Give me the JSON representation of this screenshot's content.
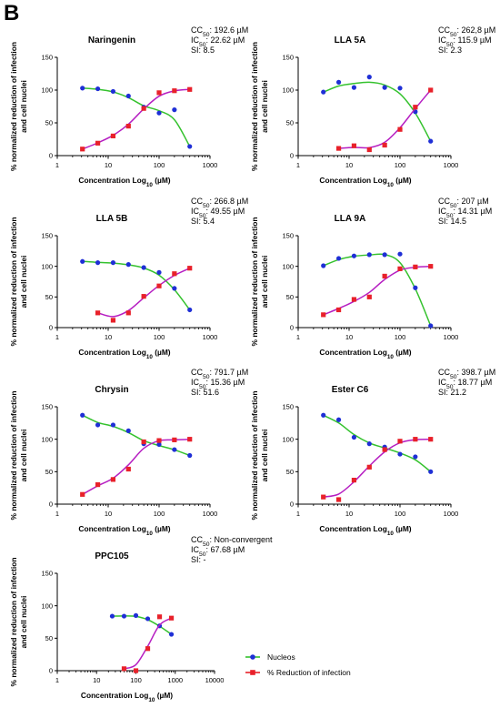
{
  "panel_label": "B",
  "units": {
    "cc50": "CC",
    "ic50": "IC",
    "sub": "50"
  },
  "legend": {
    "nucleos": "Nucleos",
    "reduction": "% Reduction of infection"
  },
  "colors": {
    "nucleos_points": "#1f2fd6",
    "reduction_points": "#e8212a",
    "nucleos_curve": "#35c22e",
    "reduction_curve": "#b61ec2"
  },
  "chart_data": [
    {
      "type": "scatter",
      "title": "Naringenin",
      "ylabel": [
        "% normalized reduction of infection",
        "and cell nuclei"
      ],
      "xlabel": "Concentration Log",
      "xlabel_sub": "10",
      "xlabel_unit": "(µM)",
      "xscale": "log",
      "xlim": [
        1,
        1000
      ],
      "ylim": [
        0,
        150
      ],
      "xticks": [
        1,
        10,
        100,
        1000
      ],
      "yticks": [
        0,
        50,
        100,
        150
      ],
      "stats": [
        "CC50: 192.6 µM",
        "IC50: 22.62 µM",
        "SI: 8.5"
      ],
      "series": [
        {
          "name": "Nucleos",
          "x": [
            3.125,
            6.25,
            12.5,
            25,
            50,
            100,
            200,
            400
          ],
          "y": [
            103,
            102,
            98,
            91,
            74,
            65,
            70,
            14
          ]
        },
        {
          "name": "% Reduction of infection",
          "x": [
            3.125,
            6.25,
            12.5,
            25,
            50,
            100,
            200,
            400
          ],
          "y": [
            10,
            19,
            30,
            45,
            72,
            96,
            99,
            101
          ]
        }
      ]
    },
    {
      "type": "scatter",
      "title": "LLA 5A",
      "ylabel": [
        "% normalized reduction of infection",
        "and cell nuclei"
      ],
      "xlabel": "Concentration Log",
      "xlabel_sub": "10",
      "xlabel_unit": "(µM)",
      "xscale": "log",
      "xlim": [
        1,
        1000
      ],
      "ylim": [
        0,
        150
      ],
      "xticks": [
        1,
        10,
        100,
        1000
      ],
      "yticks": [
        0,
        50,
        100,
        150
      ],
      "stats": [
        "CC50: 262,8 µM",
        "IC50: 115.9 µM",
        "SI: 2.3"
      ],
      "series": [
        {
          "name": "Nucleos",
          "x": [
            3.125,
            6.25,
            12.5,
            25,
            50,
            100,
            200,
            400
          ],
          "y": [
            97,
            112,
            104,
            120,
            104,
            103,
            67,
            22
          ]
        },
        {
          "name": "% Reduction of infection",
          "x": [
            3.125,
            6.25,
            12.5,
            25,
            50,
            100,
            200,
            400
          ],
          "y": [
            null,
            11,
            15,
            9,
            16,
            40,
            74,
            100
          ]
        }
      ]
    },
    {
      "type": "scatter",
      "title": "LLA 5B",
      "ylabel": [
        "% normalized reduction of infection",
        "and cell nuclei"
      ],
      "xlabel": "Concentration Log",
      "xlabel_sub": "10",
      "xlabel_unit": "(µM)",
      "xscale": "log",
      "xlim": [
        1,
        1000
      ],
      "ylim": [
        0,
        150
      ],
      "xticks": [
        1,
        10,
        100,
        1000
      ],
      "yticks": [
        0,
        50,
        100,
        150
      ],
      "stats": [
        "CC50: 266.8 µM",
        "IC50: 49.55 µM",
        "SI: 5.4"
      ],
      "series": [
        {
          "name": "Nucleos",
          "x": [
            3.125,
            6.25,
            12.5,
            25,
            50,
            100,
            200,
            400
          ],
          "y": [
            108,
            106,
            106,
            103,
            98,
            90,
            64,
            29
          ]
        },
        {
          "name": "% Reduction of infection",
          "x": [
            3.125,
            6.25,
            12.5,
            25,
            50,
            100,
            200,
            400
          ],
          "y": [
            null,
            24,
            12,
            24,
            51,
            68,
            88,
            97
          ]
        }
      ]
    },
    {
      "type": "scatter",
      "title": "LLA 9A",
      "ylabel": [
        "% normalized reduction of infection",
        "and cell nuclei"
      ],
      "xlabel": "Concentration Log",
      "xlabel_sub": "10",
      "xlabel_unit": "(µM)",
      "xscale": "log",
      "xlim": [
        1,
        1000
      ],
      "ylim": [
        0,
        150
      ],
      "xticks": [
        1,
        10,
        100,
        1000
      ],
      "yticks": [
        0,
        50,
        100,
        150
      ],
      "stats": [
        "CC50: 207 µM",
        "IC50: 14.31 µM",
        "SI: 14.5"
      ],
      "series": [
        {
          "name": "Nucleos",
          "x": [
            3.125,
            6.25,
            12.5,
            25,
            50,
            100,
            200,
            400
          ],
          "y": [
            101,
            113,
            117,
            119,
            119,
            120,
            65,
            3
          ]
        },
        {
          "name": "% Reduction of infection",
          "x": [
            3.125,
            6.25,
            12.5,
            25,
            50,
            100,
            200,
            400
          ],
          "y": [
            21,
            29,
            46,
            50,
            84,
            96,
            99,
            100
          ]
        }
      ]
    },
    {
      "type": "scatter",
      "title": "Chrysin",
      "ylabel": [
        "% normalized reduction of infection",
        "and cell nuclei"
      ],
      "xlabel": "Concentration Log",
      "xlabel_sub": "10",
      "xlabel_unit": "(µM)",
      "xscale": "log",
      "xlim": [
        1,
        1000
      ],
      "ylim": [
        0,
        150
      ],
      "xticks": [
        1,
        10,
        100,
        1000
      ],
      "yticks": [
        0,
        50,
        100,
        150
      ],
      "stats": [
        "CC50: 791.7 µM",
        "IC50: 15.36 µM",
        "SI: 51.6"
      ],
      "series": [
        {
          "name": "Nucleos",
          "x": [
            3.125,
            6.25,
            12.5,
            25,
            50,
            100,
            200,
            400
          ],
          "y": [
            137,
            122,
            122,
            113,
            93,
            92,
            84,
            75
          ]
        },
        {
          "name": "% Reduction of infection",
          "x": [
            3.125,
            6.25,
            12.5,
            25,
            50,
            100,
            200,
            400
          ],
          "y": [
            15,
            30,
            38,
            54,
            96,
            98,
            99,
            100
          ]
        }
      ]
    },
    {
      "type": "scatter",
      "title": "Ester C6",
      "ylabel": [
        "% normalized reduction of infection",
        "and cell nuclei"
      ],
      "xlabel": "Concentration Log",
      "xlabel_sub": "10",
      "xlabel_unit": "(µM)",
      "xscale": "log",
      "xlim": [
        1,
        1000
      ],
      "ylim": [
        0,
        150
      ],
      "xticks": [
        1,
        10,
        100,
        1000
      ],
      "yticks": [
        0,
        50,
        100,
        150
      ],
      "stats": [
        "CC50: 398.7 µM",
        "IC50: 18.77 µM",
        "SI: 21.2"
      ],
      "series": [
        {
          "name": "Nucleos",
          "x": [
            3.125,
            6.25,
            12.5,
            25,
            50,
            100,
            200,
            400
          ],
          "y": [
            137,
            130,
            103,
            93,
            88,
            77,
            73,
            50
          ]
        },
        {
          "name": "% Reduction of infection",
          "x": [
            3.125,
            6.25,
            12.5,
            25,
            50,
            100,
            200,
            400
          ],
          "y": [
            11,
            7,
            37,
            57,
            84,
            97,
            100,
            100
          ]
        }
      ]
    },
    {
      "type": "scatter",
      "title": "PPC105",
      "ylabel": [
        "% normalized reduction of infection",
        "and cell nuclei"
      ],
      "xlabel": "Concentration Log",
      "xlabel_sub": "10",
      "xlabel_unit": "(µM)",
      "xscale": "log",
      "xlim": [
        1,
        10000
      ],
      "ylim": [
        0,
        150
      ],
      "xticks": [
        1,
        10,
        100,
        1000,
        10000
      ],
      "yticks": [
        0,
        50,
        100,
        150
      ],
      "stats": [
        "CC50: Non-convergent",
        "IC50: 67.68 µM",
        "SI: -"
      ],
      "series": [
        {
          "name": "Nucleos",
          "x": [
            25,
            50,
            100,
            200,
            400,
            800
          ],
          "y": [
            84,
            84,
            85,
            80,
            69,
            56
          ]
        },
        {
          "name": "% Reduction of infection",
          "x": [
            25,
            50,
            100,
            200,
            400,
            800
          ],
          "y": [
            null,
            3,
            0,
            34,
            83,
            81
          ]
        }
      ]
    }
  ]
}
